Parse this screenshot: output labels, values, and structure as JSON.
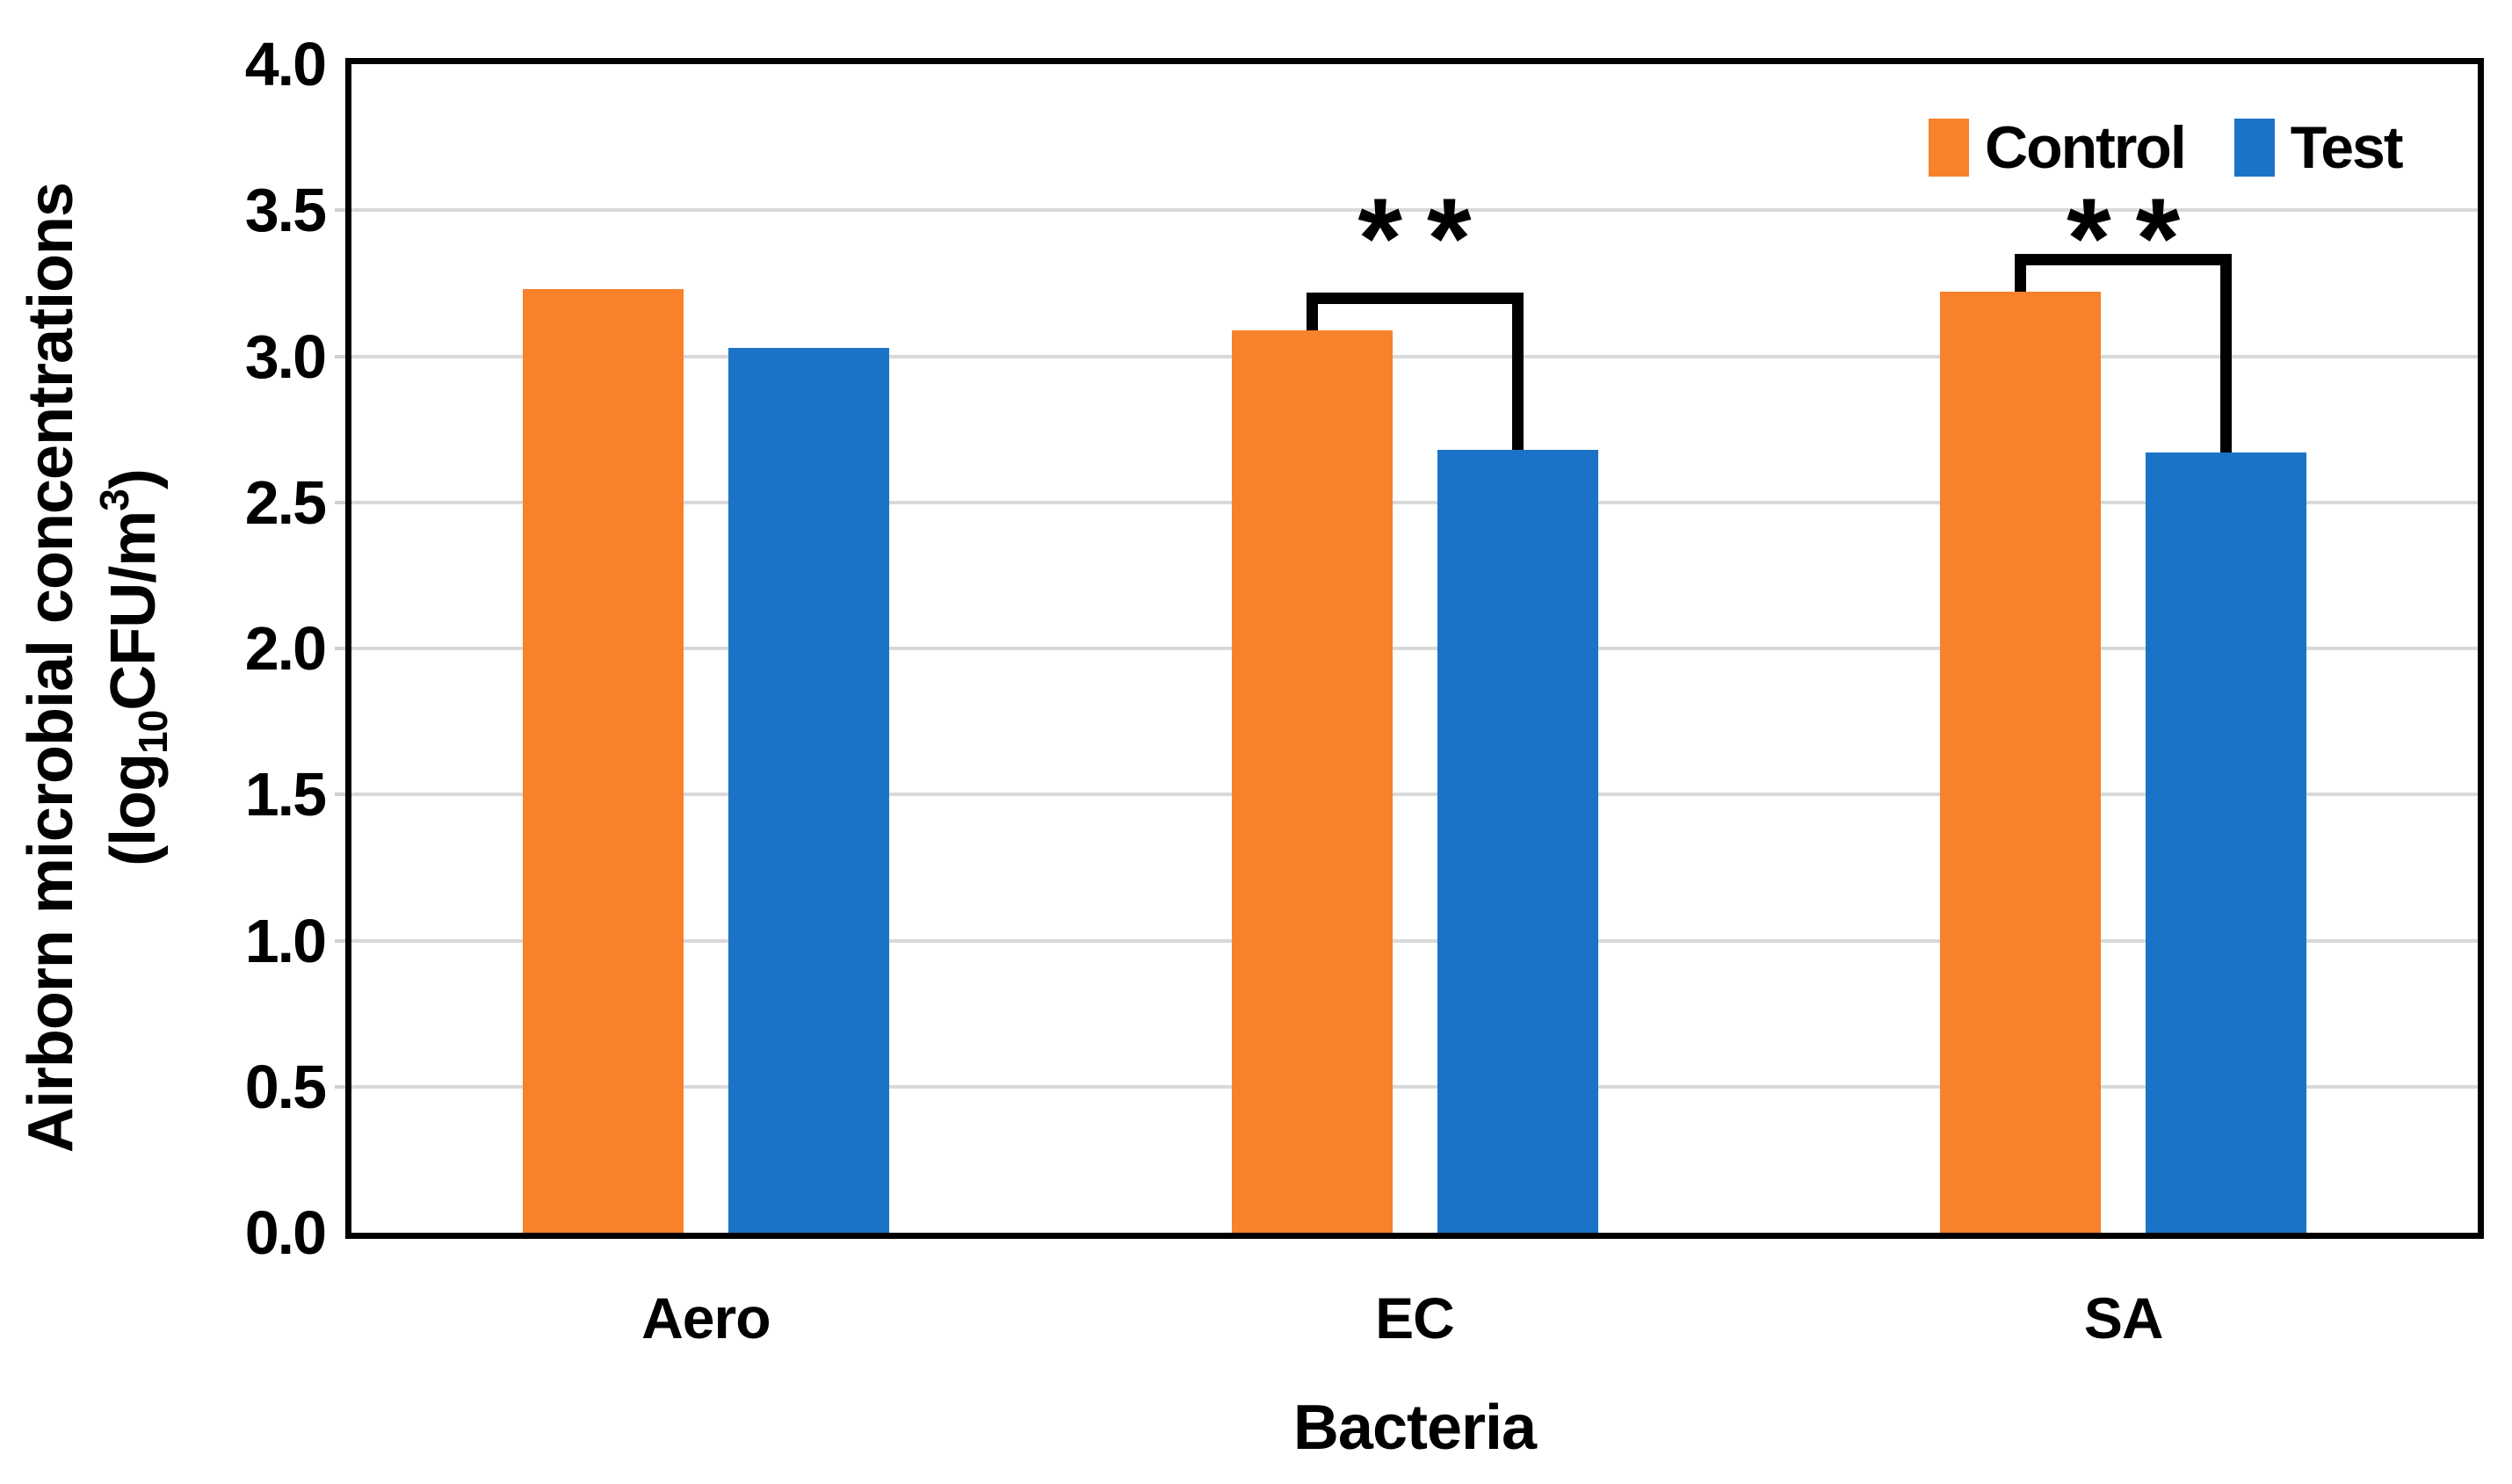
{
  "chart_data": {
    "type": "bar",
    "title": "",
    "categories": [
      "Aero",
      "EC",
      "SA"
    ],
    "series": [
      {
        "name": "Control",
        "color": "#F8812B",
        "values": [
          3.23,
          3.09,
          3.22
        ]
      },
      {
        "name": "Test",
        "color": "#1B73C7",
        "values": [
          3.03,
          2.68,
          2.67
        ]
      }
    ],
    "xlabel": "Bacteria",
    "ylabel_line1": "Airborn microbial concentrations",
    "ylabel_line2": {
      "prefix": "(log",
      "sub": "10",
      "mid": "CFU/m",
      "sup": "3",
      "suffix": ")"
    },
    "ylim": [
      0,
      4
    ],
    "yticks": [
      {
        "label": "4.0",
        "value": 4.0
      },
      {
        "label": "3.5",
        "value": 3.5
      },
      {
        "label": "3.0",
        "value": 3.0
      },
      {
        "label": "2.5",
        "value": 2.5
      },
      {
        "label": "2.0",
        "value": 2.0
      },
      {
        "label": "1.5",
        "value": 1.5
      },
      {
        "label": "1.0",
        "value": 1.0
      },
      {
        "label": "0.5",
        "value": 0.5
      },
      {
        "label": "0.0",
        "value": 0.0
      }
    ],
    "grid": true,
    "gridline_color": "#D9D9D9",
    "axis_color": "#000000",
    "legend_position": "top-right-inside",
    "annotations": [
      {
        "category": "EC",
        "label": "**",
        "bracket_top_value": 3.2,
        "label_value": 3.47
      },
      {
        "category": "SA",
        "label": "**",
        "bracket_top_value": 3.33,
        "label_value": 3.47
      }
    ]
  }
}
